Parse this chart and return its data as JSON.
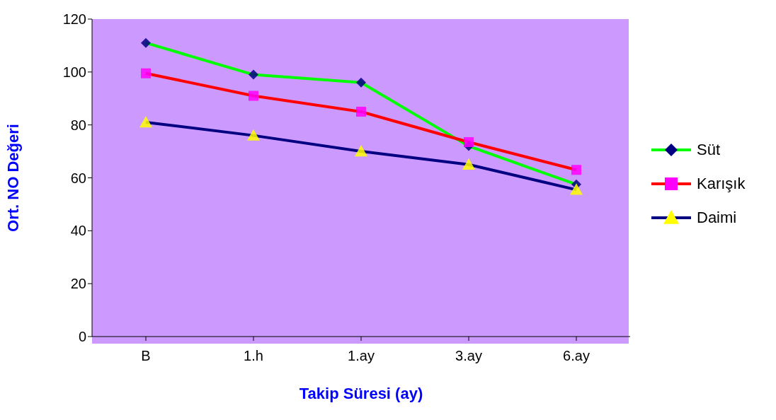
{
  "chart_data": {
    "type": "line",
    "xlabel": "Takip Süresi (ay)",
    "ylabel": "Ort. NO Değeri",
    "categories": [
      "B",
      "1.h",
      "1.ay",
      "3.ay",
      "6.ay"
    ],
    "series": [
      {
        "name": "Süt",
        "color": "#00ff00",
        "colors": [
          "#000080",
          "#000080",
          "#000080",
          "#000080",
          "#000080"
        ],
        "marker": "diamond",
        "values": [
          111,
          99,
          96,
          72,
          57.5
        ]
      },
      {
        "name": "Karışık",
        "color": "#ff0000",
        "colors": [
          "#ff00ff",
          "#ff00ff",
          "#ff00ff",
          "#ff00ff",
          "#ff00ff"
        ],
        "marker": "square",
        "values": [
          99.5,
          91,
          85,
          73.5,
          63
        ]
      },
      {
        "name": "Daimi",
        "color": "#000080",
        "colors": [
          "#ffff00",
          "#ffff00",
          "#ffff00",
          "#ffff00",
          "#ffff00"
        ],
        "marker": "triangle",
        "values": [
          81,
          76,
          70,
          65,
          55.5
        ]
      }
    ],
    "ylim": [
      0,
      120
    ],
    "yticks": [
      0,
      20,
      40,
      60,
      80,
      100,
      120
    ],
    "grid": false,
    "legend": "right",
    "line_style": "solid"
  }
}
